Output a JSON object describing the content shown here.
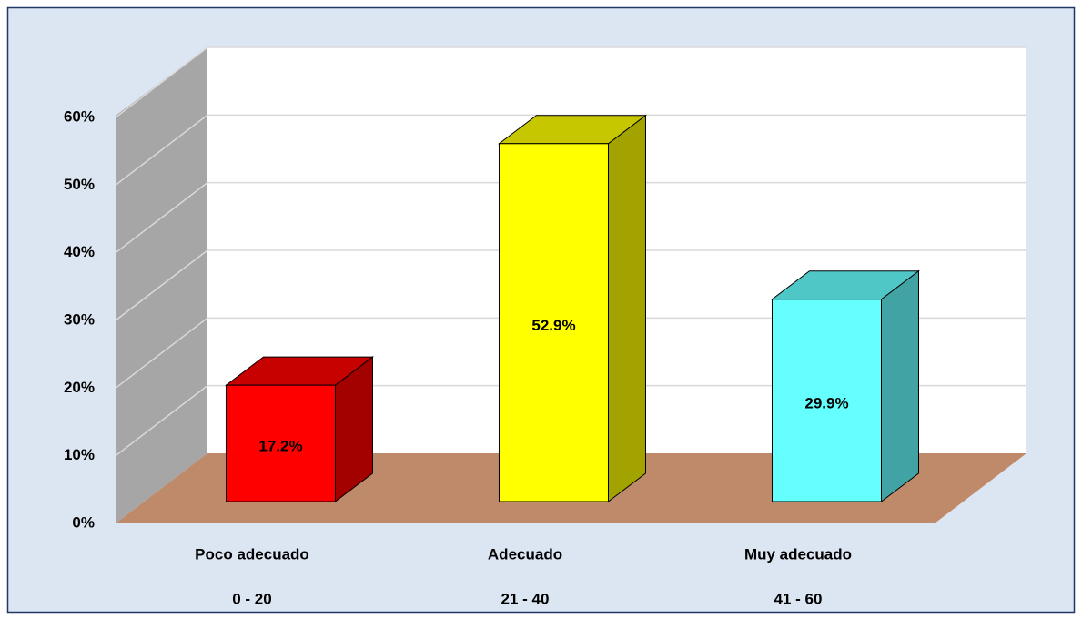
{
  "chart_data": {
    "type": "bar3d",
    "categories": [
      [
        "Poco adecuado",
        "0 - 20"
      ],
      [
        "Adecuado",
        "21 - 40"
      ],
      [
        "Muy adecuado",
        "41 - 60"
      ]
    ],
    "values": [
      17.2,
      52.9,
      29.9
    ],
    "value_labels": [
      "17.2%",
      "52.9%",
      "29.9%"
    ],
    "colors": [
      "#ff0000",
      "#ffff00",
      "#66ffff"
    ],
    "ylim": [
      0,
      60
    ],
    "yticks": [
      {
        "value": 0,
        "label": "0%"
      },
      {
        "value": 10,
        "label": "10%"
      },
      {
        "value": 20,
        "label": "20%"
      },
      {
        "value": 30,
        "label": "30%"
      },
      {
        "value": 40,
        "label": "40%"
      },
      {
        "value": 50,
        "label": "50%"
      },
      {
        "value": 60,
        "label": "60%"
      }
    ],
    "grid": true
  }
}
